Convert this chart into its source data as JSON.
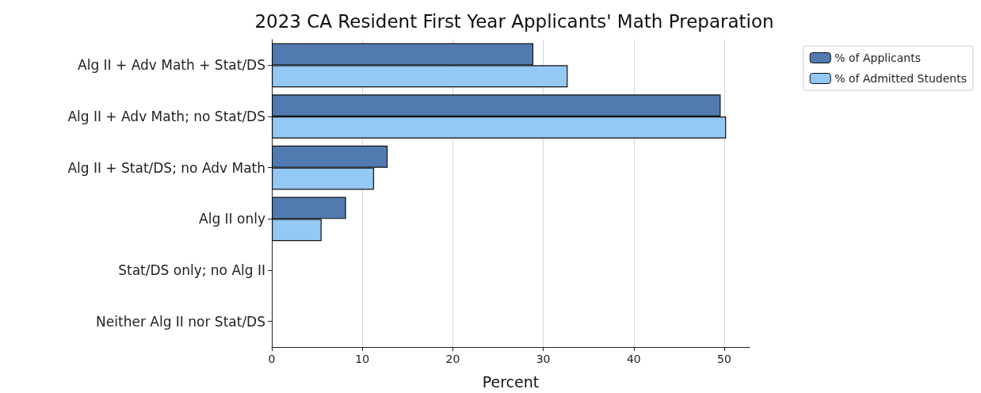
{
  "chart_data": {
    "type": "bar",
    "orientation": "horizontal",
    "title": "2023 CA Resident First Year Applicants' Math Preparation",
    "xlabel": "Percent",
    "categories": [
      "Alg II + Adv Math + Stat/DS",
      "Alg II + Adv Math; no Stat/DS",
      "Alg II + Stat/DS; no Adv Math",
      "Alg II only",
      "Stat/DS only; no Alg II",
      "Neither Alg II nor Stat/DS"
    ],
    "series": [
      {
        "name": "% of Applicants",
        "color": "#517bb0",
        "values": [
          28.9,
          49.6,
          12.8,
          8.2,
          0,
          0
        ]
      },
      {
        "name": "% of Admitted Students",
        "color": "#94c8f5",
        "values": [
          32.7,
          50.2,
          11.3,
          5.5,
          0,
          0
        ]
      }
    ],
    "xlim": [
      0,
      52.8
    ],
    "xticks": [
      0,
      10,
      20,
      30,
      40,
      50
    ],
    "grid": "x",
    "legend": "top right"
  }
}
